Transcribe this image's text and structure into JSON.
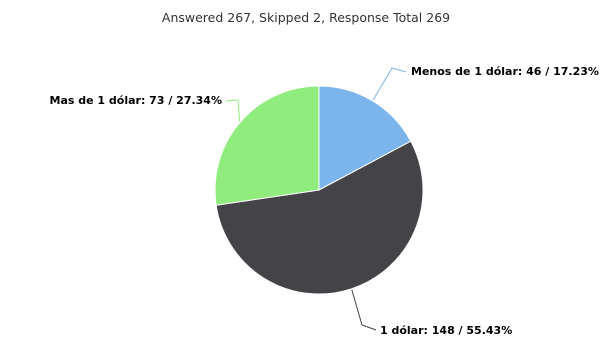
{
  "chart_data": {
    "type": "pie",
    "subtitle": "Answered 267, Skipped 2, Response Total 269",
    "slices": [
      {
        "label": "Menos de 1 dólar",
        "count": 46,
        "percent": "17.23%",
        "color": "#7cb5ec"
      },
      {
        "label": "1 dólar",
        "count": 148,
        "percent": "55.43%",
        "color": "#434348"
      },
      {
        "label": "Mas de 1 dólar",
        "count": 73,
        "percent": "27.34%",
        "color": "#90ed7d"
      }
    ]
  }
}
